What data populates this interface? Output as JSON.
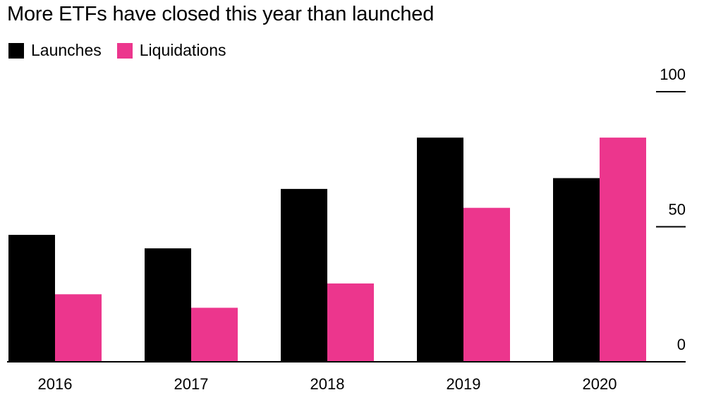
{
  "title": "More ETFs have closed this year than launched",
  "colors": {
    "launches": "#000000",
    "liquidations": "#ec368d",
    "axis": "#000000"
  },
  "chart_data": {
    "type": "bar",
    "title": "More ETFs have closed this year than launched",
    "categories": [
      "2016",
      "2017",
      "2018",
      "2019",
      "2020"
    ],
    "series": [
      {
        "name": "Launches",
        "values": [
          47,
          42,
          64,
          83,
          68
        ]
      },
      {
        "name": "Liquidations",
        "values": [
          25,
          20,
          29,
          57,
          83
        ]
      }
    ],
    "ylim": [
      0,
      100
    ],
    "yticks": [
      "0",
      "50",
      "100"
    ],
    "y_axis_position": "right",
    "legend": "top-left",
    "grid": false
  }
}
